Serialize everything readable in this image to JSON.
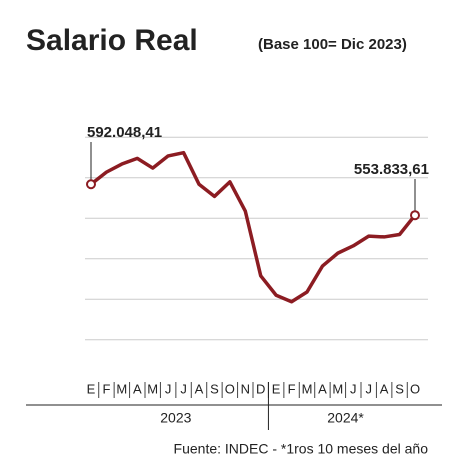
{
  "chart_data": {
    "type": "line",
    "title": "Salario Real",
    "subtitle": "(Base 100= Dic 2023)",
    "source": "Fuente: INDEC - *1ros 10 meses del año",
    "categories": [
      "E",
      "F",
      "M",
      "A",
      "M",
      "J",
      "J",
      "A",
      "S",
      "O",
      "N",
      "D",
      "E",
      "F",
      "M",
      "A",
      "M",
      "J",
      "J",
      "A",
      "S",
      "O"
    ],
    "year_groups": [
      "2023",
      "2024*"
    ],
    "series": [
      {
        "name": "Salario Real",
        "color": "#8c1c22",
        "values": [
          592048.41,
          607000,
          617000,
          624000,
          612000,
          627000,
          631000,
          592000,
          577000,
          595000,
          559000,
          479000,
          455000,
          447000,
          459000,
          491000,
          507000,
          516000,
          528000,
          527000,
          530000,
          553833.61
        ],
        "value_labels": [
          "592.048,41",
          null,
          null,
          null,
          null,
          null,
          null,
          null,
          null,
          null,
          null,
          null,
          null,
          null,
          null,
          null,
          null,
          null,
          null,
          null,
          null,
          "553.833,61"
        ]
      }
    ],
    "ylim": [
      380000,
      680000
    ],
    "yticks": [
      400000,
      450000,
      500000,
      550000,
      600000,
      650000
    ],
    "grid": true
  }
}
